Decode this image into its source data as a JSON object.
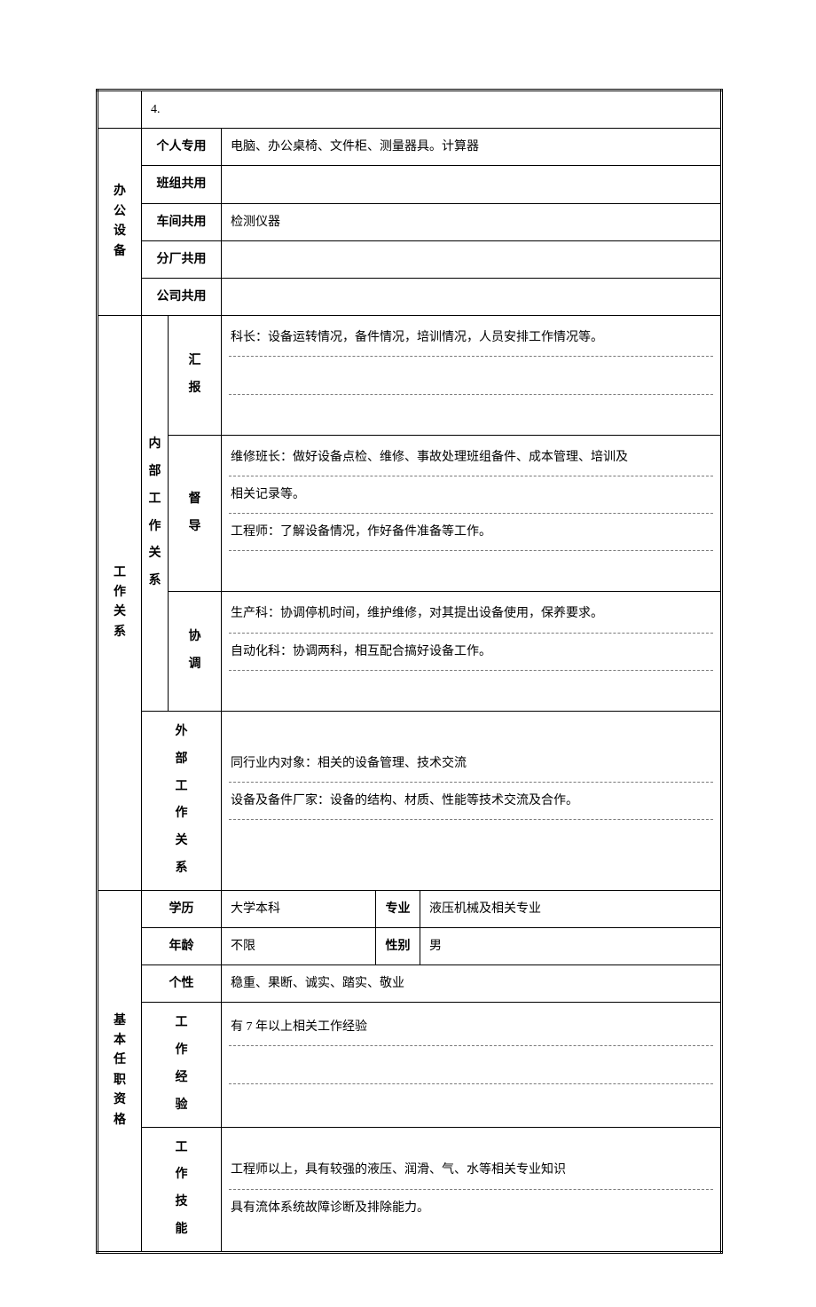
{
  "row0": {
    "item4": "4."
  },
  "office_equipment": {
    "header": "办公设备",
    "personal": {
      "label": "个人专用",
      "value": "电脑、办公桌椅、文件柜、测量器具。计算器"
    },
    "team": {
      "label": "班组共用",
      "value": ""
    },
    "workshop": {
      "label": "车间共用",
      "value": "检测仪器"
    },
    "branch": {
      "label": "分厂共用",
      "value": ""
    },
    "company": {
      "label": "公司共用",
      "value": ""
    }
  },
  "work_relation": {
    "header": "工作关系",
    "internal": {
      "label": "内部工作关系",
      "report": {
        "label": "汇报",
        "line1": "科长：设备运转情况，备件情况，培训情况，人员安排工作情况等。",
        "line2": "",
        "line3": ""
      },
      "supervise": {
        "label": "督导",
        "line1": "维修班长：做好设备点检、维修、事故处理班组备件、成本管理、培训及",
        "line2": "相关记录等。",
        "line3": "工程师：了解设备情况，作好备件准备等工作。",
        "line4": ""
      },
      "coord": {
        "label": "协调",
        "line1": "生产科：协调停机时间，维护维修，对其提出设备使用，保养要求。",
        "line2": "自动化科：协调两科，相互配合搞好设备工作。",
        "line3": ""
      }
    },
    "external": {
      "label": "外部工作关系",
      "line1": "同行业内对象：相关的设备管理、技术交流",
      "line2": "设备及备件厂家：设备的结构、材质、性能等技术交流及合作。",
      "line3": ""
    }
  },
  "qualification": {
    "header": "基本任职资格",
    "education": {
      "label": "学历",
      "value": "大学本科"
    },
    "major": {
      "label": "专业",
      "value": "液压机械及相关专业"
    },
    "age": {
      "label": "年龄",
      "value": "不限"
    },
    "gender": {
      "label": "性别",
      "value": "男"
    },
    "personality": {
      "label": "个性",
      "value": "稳重、果断、诚实、踏实、敬业"
    },
    "experience": {
      "label": "工作经验",
      "line1": "有 7 年以上相关工作经验",
      "line2": "",
      "line3": ""
    },
    "skill": {
      "label": "工作技能",
      "line1": "工程师以上，具有较强的液压、润滑、气、水等相关专业知识",
      "line2": "具有流体系统故障诊断及排除能力。"
    }
  },
  "style": {
    "border_color": "#000000",
    "dashed_color": "#7a7a7a",
    "background": "#ffffff",
    "font_size": 14
  }
}
